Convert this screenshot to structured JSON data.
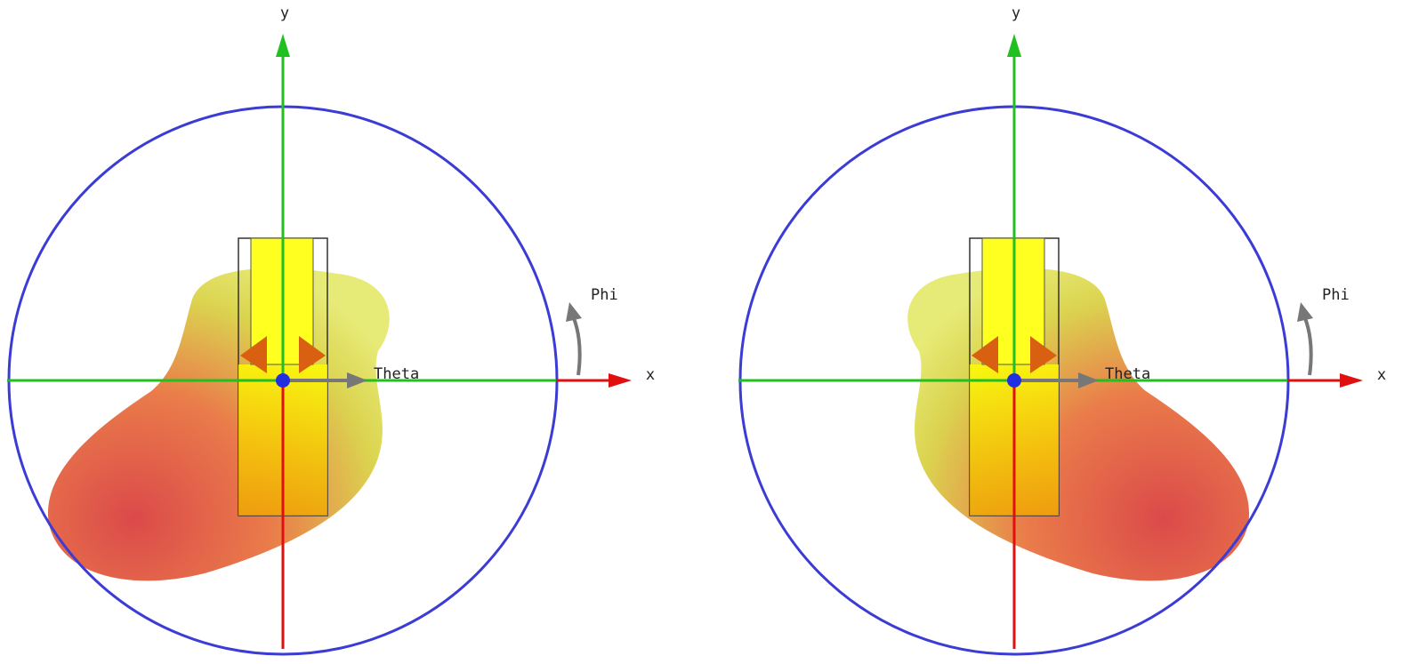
{
  "panels": [
    {
      "y_label": "y",
      "x_label": "x",
      "phi_label": "Phi",
      "theta_label": "Theta"
    },
    {
      "y_label": "y",
      "x_label": "x",
      "phi_label": "Phi",
      "theta_label": "Theta"
    }
  ]
}
